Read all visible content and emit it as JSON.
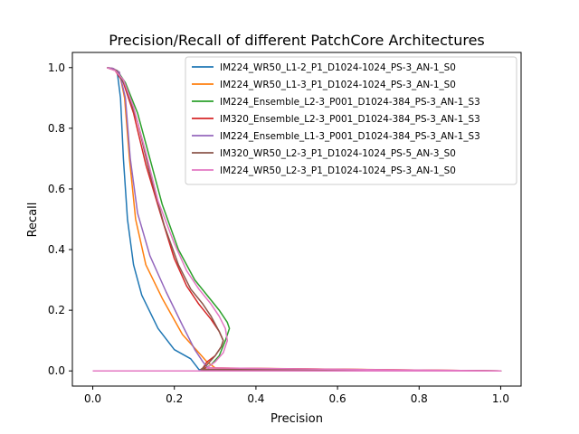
{
  "chart_data": {
    "type": "line",
    "title": "Precision/Recall of different PatchCore Architectures",
    "xlabel": "Precision",
    "ylabel": "Recall",
    "xlim": [
      -0.05,
      1.05
    ],
    "ylim": [
      -0.05,
      1.05
    ],
    "xticks": [
      0.0,
      0.2,
      0.4,
      0.6,
      0.8,
      1.0
    ],
    "xtick_labels": [
      "0.0",
      "0.2",
      "0.4",
      "0.6",
      "0.8",
      "1.0"
    ],
    "yticks": [
      0.0,
      0.2,
      0.4,
      0.6,
      0.8,
      1.0
    ],
    "ytick_labels": [
      "0.0",
      "0.2",
      "0.4",
      "0.6",
      "0.8",
      "1.0"
    ],
    "grid": false,
    "legend_position": "top-right",
    "series": [
      {
        "name": "IM224_WR50_L1-2_P1_D1024-1024_PS-3_AN-1_S0",
        "color": "#1f77b4",
        "points": [
          [
            0.0,
            0.0
          ],
          [
            0.2,
            0.0
          ],
          [
            1.0,
            0.0
          ],
          [
            0.26,
            0.005
          ],
          [
            0.24,
            0.04
          ],
          [
            0.2,
            0.07
          ],
          [
            0.16,
            0.14
          ],
          [
            0.12,
            0.25
          ],
          [
            0.1,
            0.35
          ],
          [
            0.085,
            0.5
          ],
          [
            0.075,
            0.7
          ],
          [
            0.068,
            0.9
          ],
          [
            0.06,
            0.985
          ],
          [
            0.05,
            0.997
          ],
          [
            0.035,
            1.0
          ]
        ]
      },
      {
        "name": "IM224_WR50_L1-3_P1_D1024-1024_PS-3_AN-1_S0",
        "color": "#ff7f0e",
        "points": [
          [
            0.0,
            0.0
          ],
          [
            0.3,
            0.0
          ],
          [
            1.0,
            0.0
          ],
          [
            0.3,
            0.01
          ],
          [
            0.28,
            0.03
          ],
          [
            0.26,
            0.06
          ],
          [
            0.22,
            0.12
          ],
          [
            0.17,
            0.24
          ],
          [
            0.13,
            0.35
          ],
          [
            0.105,
            0.5
          ],
          [
            0.09,
            0.7
          ],
          [
            0.078,
            0.9
          ],
          [
            0.065,
            0.985
          ],
          [
            0.05,
            0.997
          ],
          [
            0.035,
            1.0
          ]
        ]
      },
      {
        "name": "IM224_Ensemble_L2-3_P001_D1024-384_PS-3_AN-1_S3",
        "color": "#2ca02c",
        "points": [
          [
            0.0,
            0.0
          ],
          [
            0.25,
            0.0
          ],
          [
            1.0,
            0.0
          ],
          [
            0.27,
            0.005
          ],
          [
            0.29,
            0.02
          ],
          [
            0.31,
            0.05
          ],
          [
            0.325,
            0.1
          ],
          [
            0.335,
            0.14
          ],
          [
            0.33,
            0.16
          ],
          [
            0.31,
            0.2
          ],
          [
            0.28,
            0.25
          ],
          [
            0.25,
            0.3
          ],
          [
            0.21,
            0.4
          ],
          [
            0.17,
            0.55
          ],
          [
            0.14,
            0.7
          ],
          [
            0.11,
            0.85
          ],
          [
            0.08,
            0.95
          ],
          [
            0.06,
            0.99
          ],
          [
            0.035,
            1.0
          ]
        ]
      },
      {
        "name": "IM320_Ensemble_L2-3_P001_D1024-384_PS-3_AN-1_S3",
        "color": "#d62728",
        "points": [
          [
            0.0,
            0.0
          ],
          [
            0.25,
            0.0
          ],
          [
            1.0,
            0.0
          ],
          [
            0.27,
            0.01
          ],
          [
            0.28,
            0.03
          ],
          [
            0.3,
            0.05
          ],
          [
            0.315,
            0.08
          ],
          [
            0.32,
            0.1
          ],
          [
            0.31,
            0.13
          ],
          [
            0.29,
            0.17
          ],
          [
            0.26,
            0.22
          ],
          [
            0.23,
            0.28
          ],
          [
            0.2,
            0.37
          ],
          [
            0.17,
            0.5
          ],
          [
            0.13,
            0.68
          ],
          [
            0.1,
            0.85
          ],
          [
            0.075,
            0.95
          ],
          [
            0.055,
            0.99
          ],
          [
            0.035,
            1.0
          ]
        ]
      },
      {
        "name": "IM224_Ensemble_L1-3_P001_D1024-384_PS-3_AN-1_S3",
        "color": "#9467bd",
        "points": [
          [
            0.0,
            0.0
          ],
          [
            0.2,
            0.0
          ],
          [
            1.0,
            0.0
          ],
          [
            0.285,
            0.005
          ],
          [
            0.27,
            0.03
          ],
          [
            0.25,
            0.07
          ],
          [
            0.22,
            0.15
          ],
          [
            0.18,
            0.26
          ],
          [
            0.14,
            0.38
          ],
          [
            0.11,
            0.52
          ],
          [
            0.092,
            0.7
          ],
          [
            0.08,
            0.9
          ],
          [
            0.065,
            0.985
          ],
          [
            0.05,
            0.997
          ],
          [
            0.035,
            1.0
          ]
        ]
      },
      {
        "name": "IM320_WR50_L2-3_P1_D1024-1024_PS-5_AN-3_S0",
        "color": "#8c564b",
        "points": [
          [
            0.0,
            0.0
          ],
          [
            0.25,
            0.0
          ],
          [
            1.0,
            0.0
          ],
          [
            0.265,
            0.005
          ],
          [
            0.28,
            0.02
          ],
          [
            0.3,
            0.05
          ],
          [
            0.315,
            0.08
          ],
          [
            0.32,
            0.1
          ],
          [
            0.31,
            0.13
          ],
          [
            0.29,
            0.18
          ],
          [
            0.27,
            0.22
          ],
          [
            0.24,
            0.27
          ],
          [
            0.21,
            0.35
          ],
          [
            0.175,
            0.48
          ],
          [
            0.14,
            0.65
          ],
          [
            0.11,
            0.82
          ],
          [
            0.08,
            0.94
          ],
          [
            0.058,
            0.99
          ],
          [
            0.035,
            1.0
          ]
        ]
      },
      {
        "name": "IM224_WR50_L2-3_P1_D1024-1024_PS-3_AN-1_S0",
        "color": "#e377c2",
        "points": [
          [
            0.0,
            0.0
          ],
          [
            0.25,
            0.0
          ],
          [
            1.0,
            0.0
          ],
          [
            0.28,
            0.01
          ],
          [
            0.3,
            0.03
          ],
          [
            0.32,
            0.06
          ],
          [
            0.33,
            0.1
          ],
          [
            0.325,
            0.14
          ],
          [
            0.31,
            0.18
          ],
          [
            0.29,
            0.22
          ],
          [
            0.26,
            0.27
          ],
          [
            0.23,
            0.33
          ],
          [
            0.2,
            0.42
          ],
          [
            0.16,
            0.56
          ],
          [
            0.13,
            0.72
          ],
          [
            0.1,
            0.87
          ],
          [
            0.075,
            0.96
          ],
          [
            0.055,
            0.99
          ],
          [
            0.035,
            1.0
          ]
        ]
      }
    ]
  }
}
